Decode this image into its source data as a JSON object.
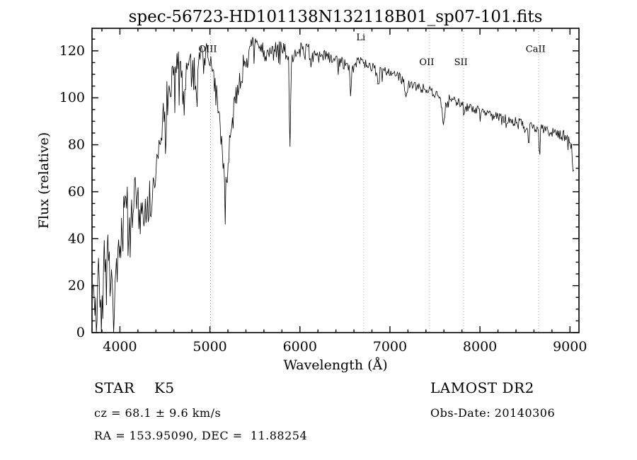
{
  "chart_data": {
    "type": "line",
    "title": "spec-56723-HD101138N132118B01_sp07-101.fits",
    "xlabel": "Wavelength (Å)",
    "ylabel": "Flux (relative)",
    "xlim": [
      3690,
      9100
    ],
    "ylim": [
      0,
      129.6
    ],
    "xticks": [
      4000,
      5000,
      6000,
      7000,
      8000,
      9000
    ],
    "yticks": [
      0,
      20,
      40,
      60,
      80,
      100,
      120
    ],
    "x_minor_step": 200,
    "y_minor_step": 5,
    "grid": false,
    "legend": "none",
    "line_color": "#000000",
    "feature_line_color": "#aaaaaa",
    "sample_step": 8,
    "data_end": 9045,
    "seed": 20140306,
    "feature_lines": [
      {
        "label": "OIII",
        "wavelength": 5007,
        "label_flux": 119.5
      },
      {
        "label": "Li",
        "wavelength": 6708,
        "label_flux": 124.5
      },
      {
        "label": "OII",
        "wavelength": 7440,
        "label_flux": 114
      },
      {
        "label": "SII",
        "wavelength": 7820,
        "label_flux": 114
      },
      {
        "label": "CaII",
        "wavelength": 8650,
        "label_flux": 119.5
      }
    ],
    "continuum": [
      [
        3690,
        0
      ],
      [
        3694,
        36
      ],
      [
        3700,
        18
      ],
      [
        3715,
        10
      ],
      [
        3730,
        26
      ],
      [
        3745,
        9
      ],
      [
        3760,
        22
      ],
      [
        3775,
        14
      ],
      [
        3790,
        28
      ],
      [
        3810,
        16
      ],
      [
        3830,
        30
      ],
      [
        3850,
        18
      ],
      [
        3870,
        32
      ],
      [
        3890,
        22
      ],
      [
        3910,
        33
      ],
      [
        3930,
        24
      ],
      [
        3950,
        30
      ],
      [
        3970,
        36
      ],
      [
        4000,
        42
      ],
      [
        4040,
        47
      ],
      [
        4080,
        52
      ],
      [
        4120,
        50
      ],
      [
        4160,
        55
      ],
      [
        4200,
        58
      ],
      [
        4240,
        54
      ],
      [
        4280,
        52
      ],
      [
        4320,
        56
      ],
      [
        4360,
        63
      ],
      [
        4400,
        72
      ],
      [
        4440,
        82
      ],
      [
        4480,
        90
      ],
      [
        4520,
        98
      ],
      [
        4560,
        107
      ],
      [
        4600,
        112
      ],
      [
        4640,
        116
      ],
      [
        4680,
        114
      ],
      [
        4720,
        111
      ],
      [
        4760,
        110
      ],
      [
        4800,
        112
      ],
      [
        4840,
        109
      ],
      [
        4880,
        114
      ],
      [
        4920,
        117
      ],
      [
        4960,
        117
      ],
      [
        5000,
        114
      ],
      [
        5040,
        109
      ],
      [
        5080,
        100
      ],
      [
        5110,
        92
      ],
      [
        5140,
        76
      ],
      [
        5165,
        60
      ],
      [
        5185,
        60
      ],
      [
        5210,
        74
      ],
      [
        5240,
        88
      ],
      [
        5270,
        96
      ],
      [
        5300,
        103
      ],
      [
        5340,
        109
      ],
      [
        5380,
        114
      ],
      [
        5420,
        119
      ],
      [
        5460,
        122
      ],
      [
        5500,
        123
      ],
      [
        5540,
        120
      ],
      [
        5580,
        119
      ],
      [
        5620,
        120
      ],
      [
        5660,
        121
      ],
      [
        5700,
        120
      ],
      [
        5740,
        121
      ],
      [
        5780,
        122
      ],
      [
        5820,
        120
      ],
      [
        5860,
        119
      ],
      [
        5900,
        118
      ],
      [
        5950,
        120
      ],
      [
        6000,
        121
      ],
      [
        6050,
        119
      ],
      [
        6100,
        120
      ],
      [
        6150,
        117
      ],
      [
        6200,
        117
      ],
      [
        6250,
        118
      ],
      [
        6300,
        117
      ],
      [
        6350,
        116
      ],
      [
        6400,
        117
      ],
      [
        6450,
        115
      ],
      [
        6500,
        114
      ],
      [
        6550,
        113
      ],
      [
        6600,
        115
      ],
      [
        6650,
        116
      ],
      [
        6700,
        115
      ],
      [
        6750,
        114
      ],
      [
        6800,
        113
      ],
      [
        6850,
        111
      ],
      [
        6900,
        112
      ],
      [
        6950,
        111
      ],
      [
        7000,
        111
      ],
      [
        7050,
        110
      ],
      [
        7100,
        109
      ],
      [
        7150,
        107
      ],
      [
        7200,
        106
      ],
      [
        7250,
        106
      ],
      [
        7300,
        105
      ],
      [
        7350,
        104
      ],
      [
        7400,
        104
      ],
      [
        7450,
        103
      ],
      [
        7500,
        102
      ],
      [
        7550,
        101
      ],
      [
        7600,
        98
      ],
      [
        7650,
        100
      ],
      [
        7700,
        99
      ],
      [
        7750,
        98
      ],
      [
        7800,
        97
      ],
      [
        7850,
        96
      ],
      [
        7900,
        96
      ],
      [
        7950,
        95
      ],
      [
        8000,
        94
      ],
      [
        8050,
        94
      ],
      [
        8100,
        93
      ],
      [
        8150,
        92
      ],
      [
        8200,
        92
      ],
      [
        8250,
        91
      ],
      [
        8300,
        91
      ],
      [
        8350,
        90
      ],
      [
        8400,
        90
      ],
      [
        8450,
        89
      ],
      [
        8500,
        88
      ],
      [
        8550,
        88
      ],
      [
        8600,
        87
      ],
      [
        8650,
        86
      ],
      [
        8700,
        87
      ],
      [
        8750,
        86
      ],
      [
        8800,
        85
      ],
      [
        8850,
        85
      ],
      [
        8900,
        84
      ],
      [
        8950,
        84
      ],
      [
        9000,
        83
      ],
      [
        9020,
        78
      ],
      [
        9040,
        64
      ],
      [
        9045,
        72
      ]
    ],
    "absorption_lines": [
      [
        3933,
        16,
        7
      ],
      [
        3968,
        12,
        7
      ],
      [
        4101,
        9,
        6
      ],
      [
        4227,
        8,
        5
      ],
      [
        4340,
        10,
        6
      ],
      [
        4861,
        9,
        6
      ],
      [
        5890,
        40,
        7
      ],
      [
        6122,
        6,
        6
      ],
      [
        6563,
        13,
        6
      ],
      [
        6870,
        7,
        10
      ],
      [
        7180,
        5,
        12
      ],
      [
        7594,
        11,
        13
      ],
      [
        8498,
        5,
        5
      ],
      [
        8542,
        9,
        6
      ],
      [
        8662,
        11,
        6
      ]
    ],
    "noise_profile": [
      [
        3690,
        13
      ],
      [
        3900,
        13
      ],
      [
        4100,
        12
      ],
      [
        4300,
        10
      ],
      [
        4500,
        9
      ],
      [
        4700,
        8
      ],
      [
        4900,
        7
      ],
      [
        5100,
        7
      ],
      [
        5300,
        6
      ],
      [
        5500,
        5
      ],
      [
        5700,
        4.5
      ],
      [
        5900,
        4
      ],
      [
        6100,
        3.5
      ],
      [
        6300,
        3
      ],
      [
        6500,
        2.5
      ],
      [
        6700,
        2.5
      ],
      [
        7000,
        2
      ],
      [
        7500,
        2
      ],
      [
        8000,
        2
      ],
      [
        8500,
        2.2
      ],
      [
        9045,
        2.5
      ]
    ]
  },
  "annotations": {
    "class_label": "STAR    K5",
    "cz": "cz = 68.1 ± 9.6 km/s",
    "radec": "RA = 153.95090, DEC =  11.88254",
    "survey": "LAMOST DR2",
    "obs_date": "Obs-Date: 20140306"
  }
}
